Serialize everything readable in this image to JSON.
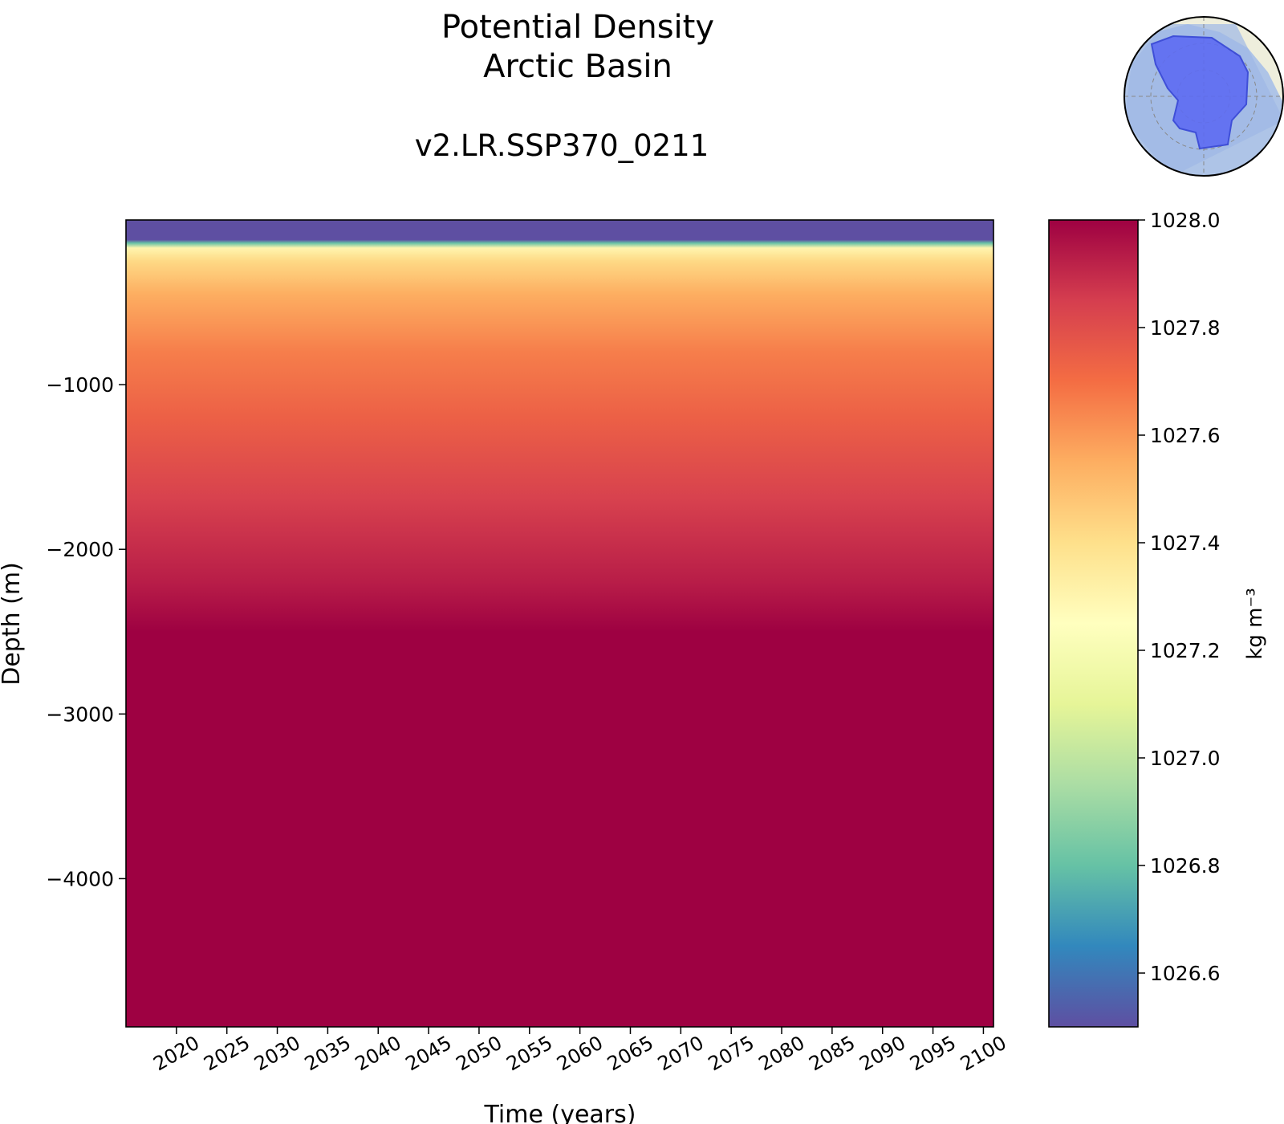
{
  "chart_data": {
    "type": "heatmap",
    "title": [
      "Potential Density",
      "Arctic Basin"
    ],
    "subtitle": "v2.LR.SSP370_0211",
    "xlabel": "Time (years)",
    "ylabel": "Depth (m)",
    "xlim": [
      2015,
      2101
    ],
    "ylim": [
      -4900,
      0
    ],
    "x_ticks": [
      2020,
      2025,
      2030,
      2035,
      2040,
      2045,
      2050,
      2055,
      2060,
      2065,
      2070,
      2075,
      2080,
      2085,
      2090,
      2095,
      2100
    ],
    "y_ticks": [
      -1000,
      -2000,
      -3000,
      -4000
    ],
    "colormap": "Spectral_r",
    "colorbar": {
      "label": "kg m⁻³",
      "range": [
        1026.5,
        1028.0
      ],
      "ticks": [
        1026.6,
        1026.8,
        1027.0,
        1027.2,
        1027.4,
        1027.6,
        1027.8,
        1028.0
      ]
    },
    "depth_profile": [
      {
        "depth": 0,
        "value": 1026.5
      },
      {
        "depth": -120,
        "value": 1026.5
      },
      {
        "depth": -140,
        "value": 1026.8
      },
      {
        "depth": -170,
        "value": 1027.3
      },
      {
        "depth": -250,
        "value": 1027.42
      },
      {
        "depth": -450,
        "value": 1027.55
      },
      {
        "depth": -800,
        "value": 1027.66
      },
      {
        "depth": -1200,
        "value": 1027.74
      },
      {
        "depth": -1700,
        "value": 1027.84
      },
      {
        "depth": -2200,
        "value": 1027.93
      },
      {
        "depth": -2500,
        "value": 1028.0
      },
      {
        "depth": -4900,
        "value": 1028.0
      }
    ]
  },
  "inset_map": {
    "description_icon": "arctic-basin-region-map-icon"
  }
}
